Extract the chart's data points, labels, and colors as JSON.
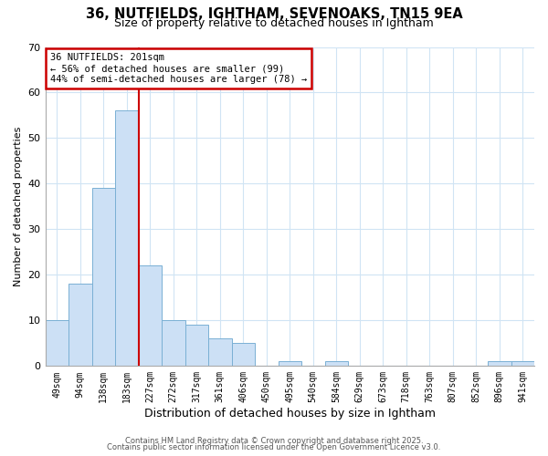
{
  "title_line1": "36, NUTFIELDS, IGHTHAM, SEVENOAKS, TN15 9EA",
  "title_line2": "Size of property relative to detached houses in Ightham",
  "xlabel": "Distribution of detached houses by size in Ightham",
  "ylabel": "Number of detached properties",
  "bar_color": "#cce0f5",
  "bar_edge_color": "#7ab0d4",
  "background_color": "#ffffff",
  "grid_color": "#d0e4f4",
  "categories": [
    "49sqm",
    "94sqm",
    "138sqm",
    "183sqm",
    "227sqm",
    "272sqm",
    "317sqm",
    "361sqm",
    "406sqm",
    "450sqm",
    "495sqm",
    "540sqm",
    "584sqm",
    "629sqm",
    "673sqm",
    "718sqm",
    "763sqm",
    "807sqm",
    "852sqm",
    "896sqm",
    "941sqm"
  ],
  "values": [
    10,
    18,
    39,
    56,
    22,
    10,
    9,
    6,
    5,
    0,
    1,
    0,
    1,
    0,
    0,
    0,
    0,
    0,
    0,
    1,
    1
  ],
  "ylim": [
    0,
    70
  ],
  "yticks": [
    0,
    10,
    20,
    30,
    40,
    50,
    60,
    70
  ],
  "red_line_x": 3.5,
  "annotation_title": "36 NUTFIELDS: 201sqm",
  "annotation_line1": "← 56% of detached houses are smaller (99)",
  "annotation_line2": "44% of semi-detached houses are larger (78) →",
  "annotation_box_color": "#ffffff",
  "annotation_box_edge_color": "#cc0000",
  "red_line_color": "#cc0000",
  "footnote1": "Contains HM Land Registry data © Crown copyright and database right 2025.",
  "footnote2": "Contains public sector information licensed under the Open Government Licence v3.0."
}
